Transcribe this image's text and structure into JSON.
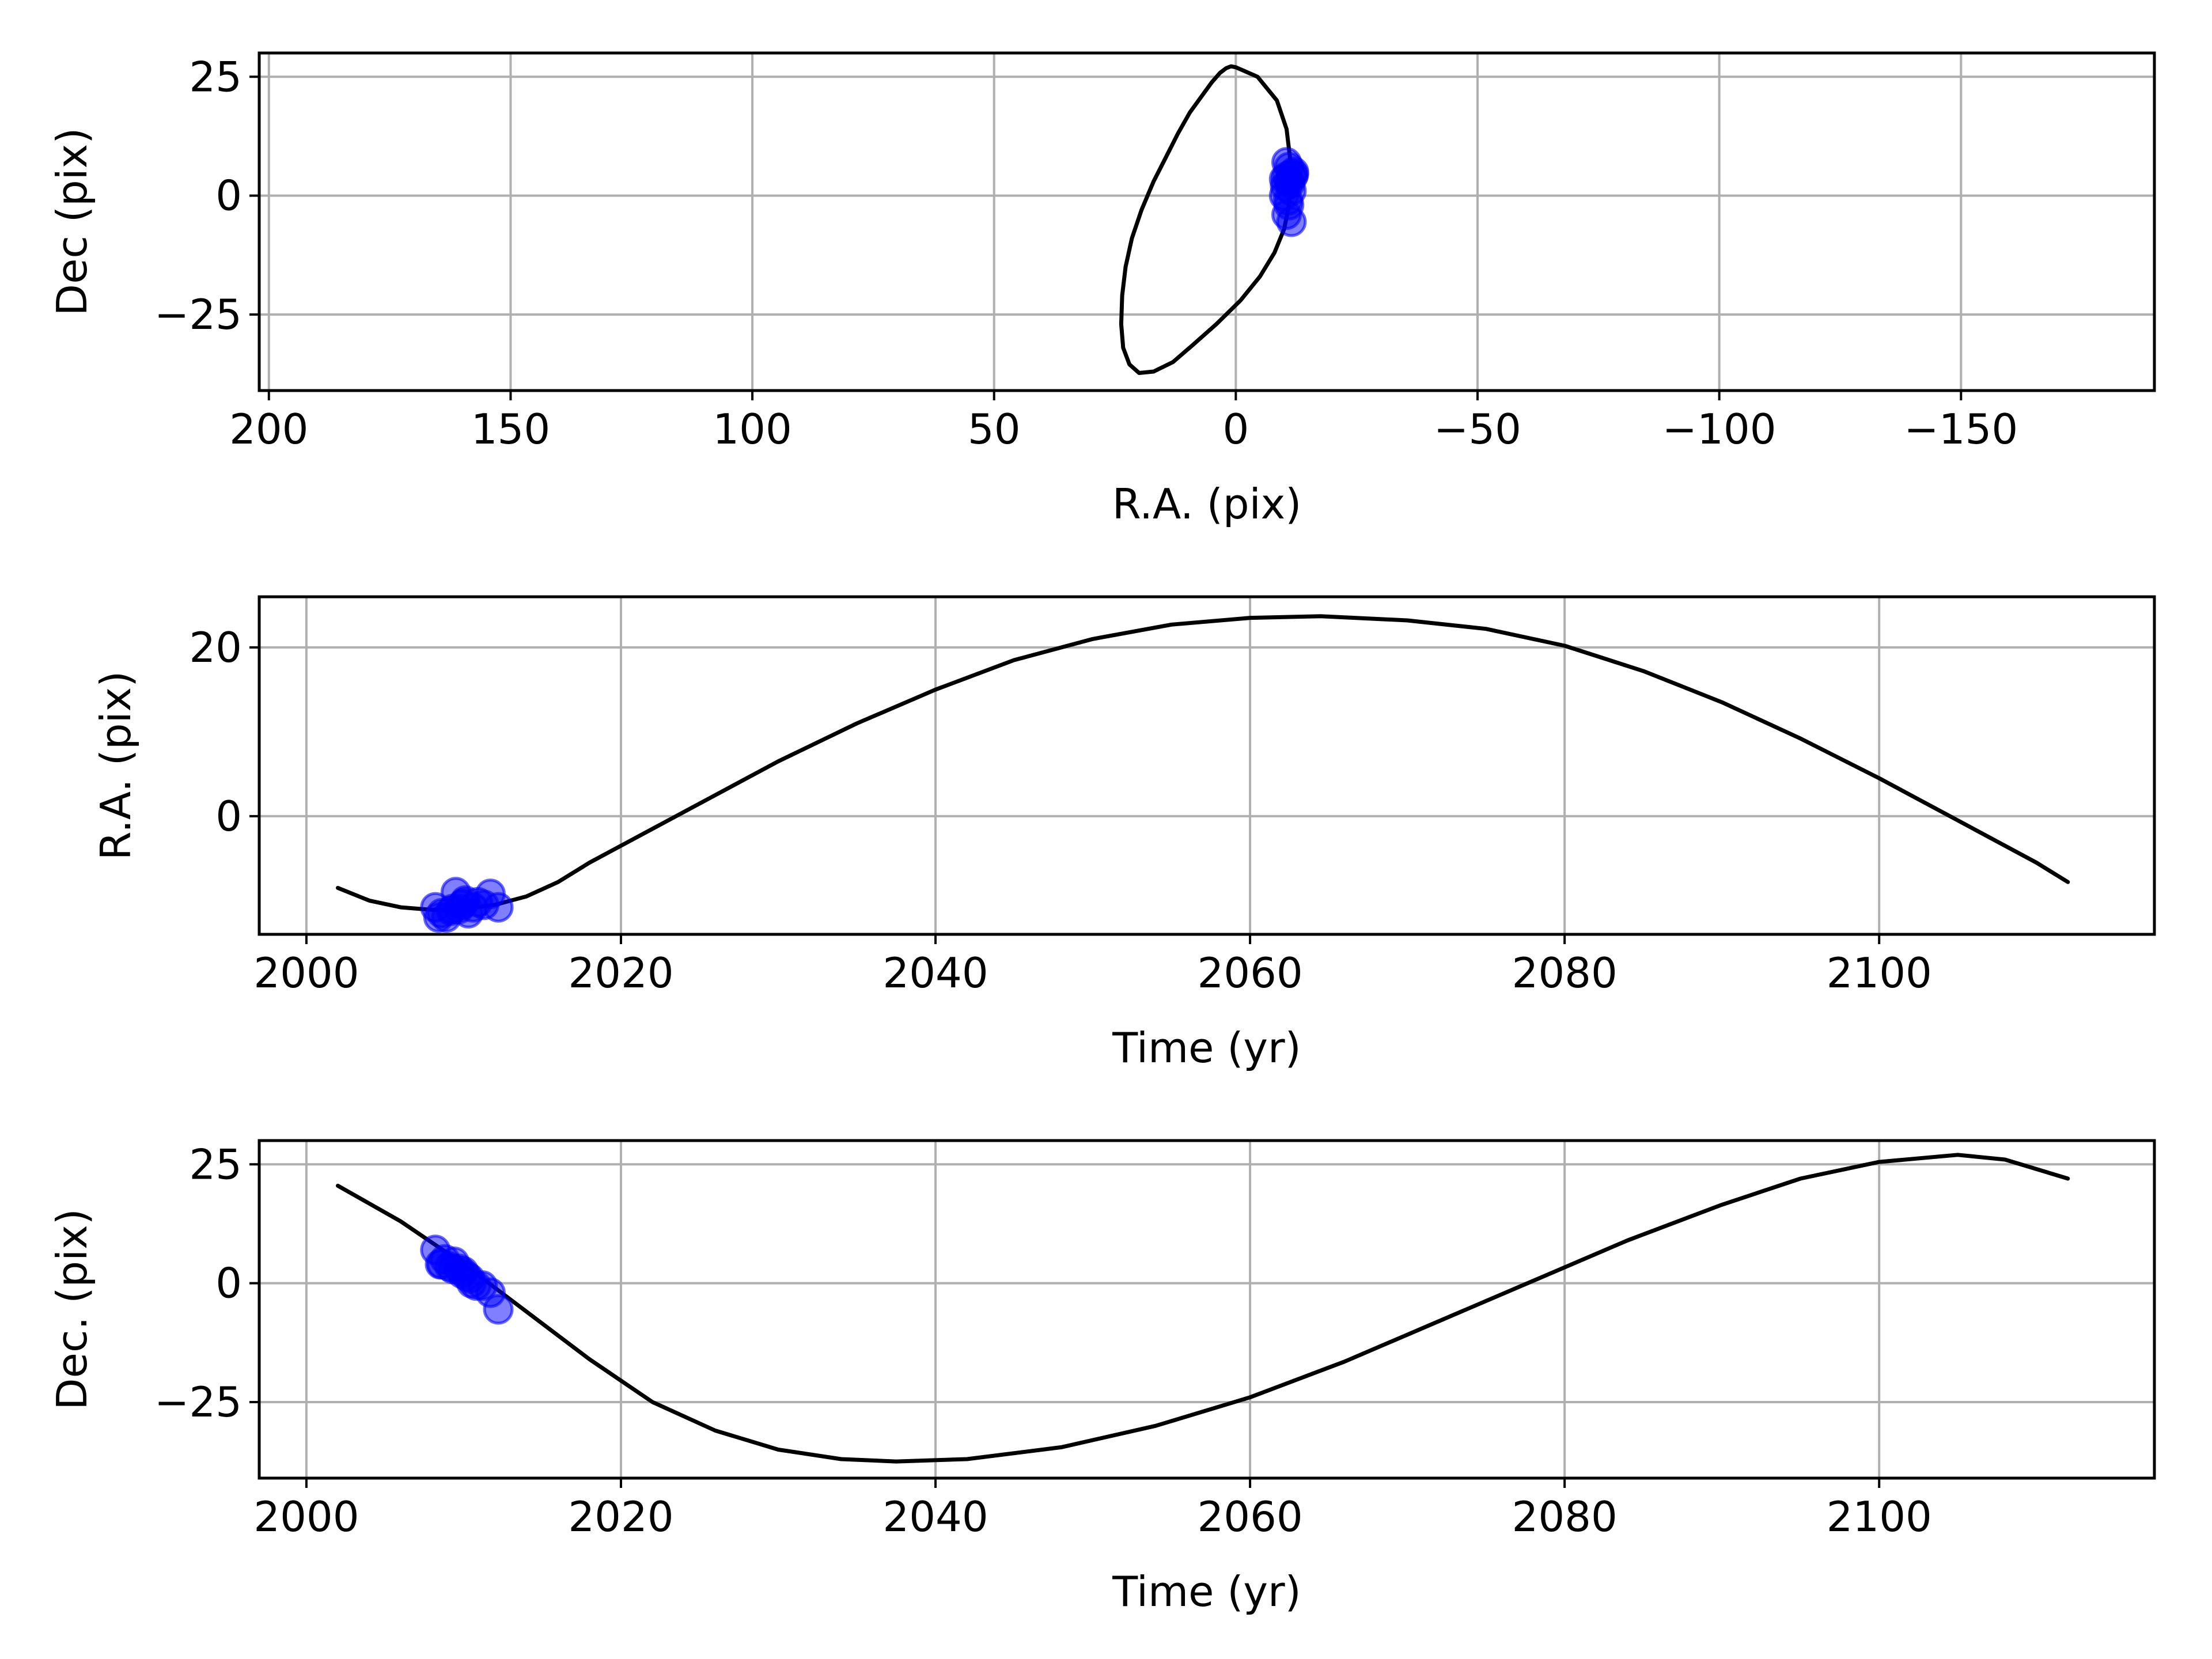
{
  "colors": {
    "curve": "#000000",
    "points": "#0000ff",
    "grid": "#b0b0b0",
    "frame": "#000000",
    "background": "#ffffff"
  },
  "chart_data": [
    {
      "id": "sky",
      "type": "line",
      "title": "",
      "xlabel": "R.A. (pix)",
      "ylabel": "Dec (pix)",
      "xlim": [
        202,
        -190
      ],
      "ylim": [
        -41,
        30
      ],
      "xticks": [
        200,
        150,
        100,
        50,
        0,
        -50,
        -100,
        -150
      ],
      "xtick_labels": [
        "200",
        "150",
        "100",
        "50",
        "0",
        "−50",
        "−100",
        "−150"
      ],
      "yticks": [
        25,
        0,
        -25
      ],
      "ytick_labels": [
        "25",
        "0",
        "−25"
      ],
      "grid": true,
      "series": [
        {
          "kind": "line",
          "x": [
            0.0,
            -4.5,
            -8.5,
            -10.5,
            -11.2,
            -11.4,
            -11.0,
            -10.0,
            -8.0,
            -5.0,
            -1.0,
            4.0,
            9.0,
            13.0,
            17.0,
            20.0,
            22.0,
            23.3,
            23.7,
            23.5,
            22.8,
            21.5,
            19.5,
            17.0,
            14.5,
            12.0,
            9.5,
            7.0,
            5.0,
            3.3,
            2.0,
            1.0,
            0.0
          ],
          "y": [
            27.0,
            25.0,
            20.0,
            14.0,
            8.0,
            3.0,
            -2.0,
            -7.0,
            -12.0,
            -17.0,
            -22.0,
            -27.0,
            -31.5,
            -35.0,
            -37.0,
            -37.3,
            -35.5,
            -32.0,
            -27.0,
            -21.0,
            -15.0,
            -9.0,
            -3.0,
            3.0,
            8.0,
            13.0,
            17.5,
            21.0,
            23.8,
            25.8,
            26.8,
            27.2,
            27.0
          ]
        },
        {
          "kind": "scatter",
          "x": [
            -10.5,
            -11.0,
            -12.0,
            -11.5,
            -10.0,
            -11.0,
            -10.5,
            -11.8,
            -12.0,
            -11.2,
            -10.2,
            -11.5,
            -10.0,
            -10.8,
            -11.0,
            -10.5,
            -11.5
          ],
          "y": [
            7.0,
            6.0,
            5.0,
            4.5,
            3.5,
            3.0,
            4.0,
            4.0,
            4.5,
            2.5,
            2.0,
            1.0,
            0.0,
            -1.0,
            -2.0,
            -4.0,
            -5.5
          ]
        }
      ]
    },
    {
      "id": "ra-time",
      "type": "line",
      "title": "",
      "xlabel": "Time (yr)",
      "ylabel": "R.A. (pix)",
      "xlim": [
        1997,
        2117.5
      ],
      "ylim": [
        -14,
        26
      ],
      "xticks": [
        2000,
        2020,
        2040,
        2060,
        2080,
        2100
      ],
      "xtick_labels": [
        "2000",
        "2020",
        "2040",
        "2060",
        "2080",
        "2100"
      ],
      "yticks": [
        20,
        0
      ],
      "ytick_labels": [
        "20",
        "0"
      ],
      "grid": true,
      "series": [
        {
          "kind": "line",
          "x": [
            2002,
            2004,
            2006,
            2008,
            2010,
            2012,
            2014,
            2016,
            2018,
            2020,
            2025,
            2030,
            2035,
            2040,
            2045,
            2050,
            2055,
            2060,
            2064.5,
            2070,
            2075,
            2080,
            2085,
            2090,
            2095,
            2100,
            2105,
            2110,
            2112
          ],
          "y": [
            -8.5,
            -10.0,
            -10.8,
            -11.1,
            -11.0,
            -10.5,
            -9.5,
            -7.8,
            -5.5,
            -3.5,
            1.5,
            6.5,
            11.0,
            15.0,
            18.5,
            21.0,
            22.7,
            23.5,
            23.7,
            23.2,
            22.2,
            20.2,
            17.2,
            13.5,
            9.2,
            4.5,
            -0.5,
            -5.5,
            -7.8
          ]
        },
        {
          "kind": "scatter",
          "x": [
            2008.2,
            2008.6,
            2008.9,
            2009.2,
            2009.5,
            2009.7,
            2009.9,
            2010.1,
            2010.3,
            2010.6,
            2010.9,
            2011.3,
            2011.7,
            2012.2,
            2008.4,
            2009.3,
            2010.0
          ],
          "y": [
            -10.8,
            -11.5,
            -12.0,
            -11.2,
            -9.0,
            -11.0,
            -10.5,
            -10.0,
            -11.5,
            -10.8,
            -10.2,
            -10.5,
            -9.2,
            -10.8,
            -12.0,
            -11.0,
            -10.3
          ]
        }
      ]
    },
    {
      "id": "dec-time",
      "type": "line",
      "title": "",
      "xlabel": "Time (yr)",
      "ylabel": "Dec. (pix)",
      "xlim": [
        1997,
        2117.5
      ],
      "ylim": [
        -41,
        30
      ],
      "xticks": [
        2000,
        2020,
        2040,
        2060,
        2080,
        2100
      ],
      "xtick_labels": [
        "2000",
        "2020",
        "2040",
        "2060",
        "2080",
        "2100"
      ],
      "yticks": [
        25,
        0,
        -25
      ],
      "ytick_labels": [
        "25",
        "0",
        "−25"
      ],
      "grid": true,
      "series": [
        {
          "kind": "line",
          "x": [
            2002,
            2006,
            2010,
            2014,
            2018,
            2022,
            2026,
            2030,
            2034,
            2037.5,
            2042,
            2048,
            2054,
            2060,
            2066,
            2072,
            2078,
            2084,
            2090,
            2095,
            2100,
            2105,
            2108,
            2112
          ],
          "y": [
            20.5,
            13.0,
            4.0,
            -6.0,
            -16.0,
            -25.0,
            -31.0,
            -35.0,
            -37.0,
            -37.5,
            -37.0,
            -34.5,
            -30.0,
            -24.0,
            -16.5,
            -8.0,
            0.5,
            9.0,
            16.5,
            22.0,
            25.5,
            27.0,
            26.0,
            22.0
          ]
        },
        {
          "kind": "scatter",
          "x": [
            2008.2,
            2008.5,
            2008.8,
            2009.1,
            2009.4,
            2009.7,
            2010.0,
            2010.2,
            2010.5,
            2010.8,
            2011.2,
            2011.7,
            2012.2,
            2008.6,
            2009.3,
            2010.4,
            2009.9
          ],
          "y": [
            7.0,
            4.0,
            5.0,
            3.5,
            4.5,
            3.0,
            2.5,
            1.5,
            0.0,
            -0.5,
            -0.5,
            -2.0,
            -5.5,
            4.0,
            3.0,
            1.0,
            2.0
          ]
        }
      ]
    }
  ]
}
